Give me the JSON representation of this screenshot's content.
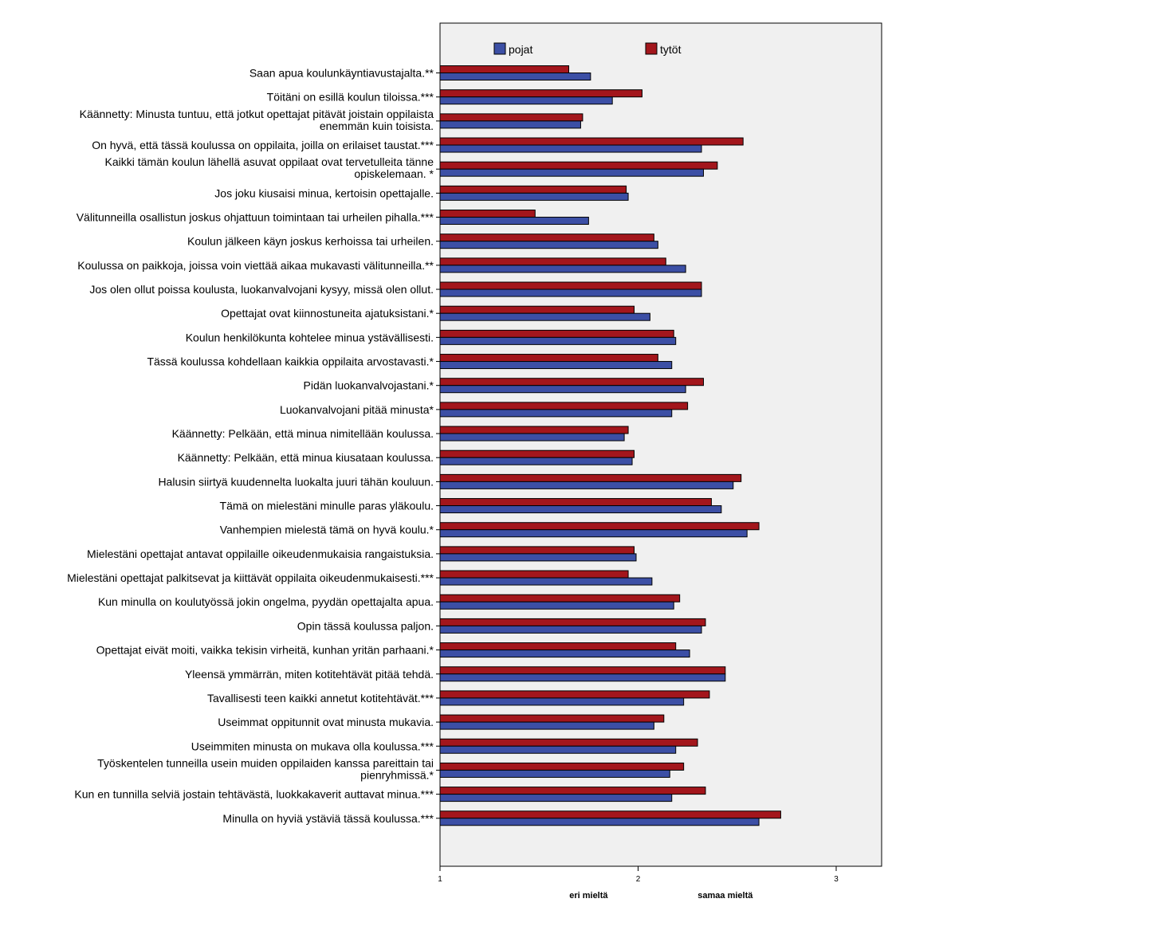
{
  "chart_data": {
    "type": "bar",
    "orientation": "horizontal",
    "categories": [
      [
        "Saan apua koulunkäyntiavustajalta.**"
      ],
      [
        "Töitäni on esillä koulun tiloissa.***"
      ],
      [
        "Käännetty: Minusta tuntuu, että jotkut opettajat pitävät joistain oppilaista",
        "enemmän kuin toisista."
      ],
      [
        "On hyvä, että tässä koulussa on oppilaita, joilla on erilaiset taustat.***"
      ],
      [
        "Kaikki tämän koulun lähellä asuvat oppilaat ovat tervetulleita tänne",
        "opiskelemaan. *"
      ],
      [
        "Jos joku kiusaisi minua, kertoisin opettajalle."
      ],
      [
        "Välitunneilla osallistun joskus ohjattuun toimintaan tai urheilen pihalla.***"
      ],
      [
        "Koulun jälkeen käyn joskus kerhoissa tai urheilen."
      ],
      [
        "Koulussa on paikkoja, joissa voin viettää aikaa mukavasti välitunneilla.**"
      ],
      [
        "Jos olen ollut poissa koulusta, luokanvalvojani kysyy, missä olen ollut."
      ],
      [
        "Opettajat ovat kiinnostuneita ajatuksistani.*"
      ],
      [
        "Koulun henkilökunta kohtelee minua ystävällisesti."
      ],
      [
        "Tässä koulussa kohdellaan kaikkia oppilaita arvostavasti.*"
      ],
      [
        "Pidän luokanvalvojastani.*"
      ],
      [
        "Luokanvalvojani pitää minusta*"
      ],
      [
        "Käännetty: Pelkään, että minua nimitellään koulussa."
      ],
      [
        "Käännetty: Pelkään, että minua kiusataan koulussa."
      ],
      [
        "Halusin siirtyä kuudennelta luokalta juuri tähän kouluun."
      ],
      [
        "Tämä on mielestäni minulle paras yläkoulu."
      ],
      [
        "Vanhempien mielestä tämä on hyvä koulu.*"
      ],
      [
        "Mielestäni opettajat antavat oppilaille oikeudenmukaisia rangaistuksia."
      ],
      [
        "Mielestäni opettajat palkitsevat ja kiittävät oppilaita oikeudenmukaisesti.***"
      ],
      [
        "Kun minulla on koulutyössä jokin ongelma, pyydän opettajalta apua."
      ],
      [
        "Opin tässä koulussa paljon."
      ],
      [
        "Opettajat eivät moiti, vaikka tekisin virheitä, kunhan yritän parhaani.*"
      ],
      [
        "Yleensä ymmärrän, miten kotitehtävät pitää tehdä."
      ],
      [
        "Tavallisesti teen kaikki annetut kotitehtävät.***"
      ],
      [
        "Useimmat oppitunnit ovat minusta mukavia."
      ],
      [
        "Useimmiten minusta on mukava olla koulussa.***"
      ],
      [
        "Työskentelen tunneilla usein muiden oppilaiden kanssa pareittain tai",
        "pienryhmissä.*"
      ],
      [
        "Kun en tunnilla selviä jostain tehtävästä, luokkakaverit auttavat minua.***"
      ],
      [
        "Minulla on hyviä ystäviä tässä koulussa.***"
      ]
    ],
    "series": [
      {
        "name": "tytöt",
        "color": "#a3161c",
        "values": [
          1.65,
          2.02,
          1.72,
          2.53,
          2.4,
          1.94,
          1.48,
          2.08,
          2.14,
          2.32,
          1.98,
          2.18,
          2.1,
          2.33,
          2.25,
          1.95,
          1.98,
          2.52,
          2.37,
          2.61,
          1.98,
          1.95,
          2.21,
          2.34,
          2.19,
          2.44,
          2.36,
          2.13,
          2.3,
          2.23,
          2.34,
          2.72
        ]
      },
      {
        "name": "pojat",
        "color": "#3c4fa5",
        "values": [
          1.76,
          1.87,
          1.71,
          2.32,
          2.33,
          1.95,
          1.75,
          2.1,
          2.24,
          2.32,
          2.06,
          2.19,
          2.17,
          2.24,
          2.17,
          1.93,
          1.97,
          2.48,
          2.42,
          2.55,
          1.99,
          2.07,
          2.18,
          2.32,
          2.26,
          2.44,
          2.23,
          2.08,
          2.19,
          2.16,
          2.17,
          2.61
        ]
      }
    ],
    "xlim": [
      1,
      3.23
    ],
    "xticks": [
      "1",
      "2",
      "3"
    ],
    "xtick_values": [
      1,
      2,
      3
    ],
    "axis_anchors": [
      {
        "label": "eri mieltä",
        "value": 1.75
      },
      {
        "label": "samaa mieltä",
        "value": 2.44
      }
    ],
    "legend": [
      {
        "name": "pojat",
        "color": "#3c4fa5"
      },
      {
        "name": "tytöt",
        "color": "#a3161c"
      }
    ],
    "legend_position": "top",
    "plot_background": "#f0f0f0",
    "grid": false
  }
}
